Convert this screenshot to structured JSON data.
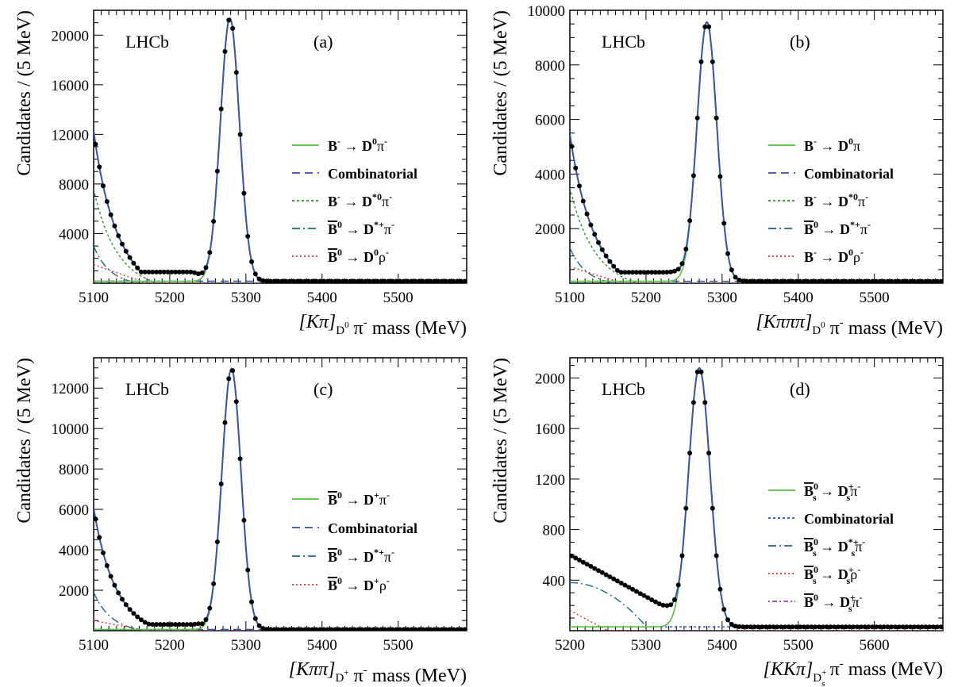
{
  "chart_data": [
    {
      "panel_label": "(a)",
      "experiment": "LHCb",
      "type": "scatter",
      "xlim": [
        5100,
        5590
      ],
      "ylim": [
        0,
        22000
      ],
      "x_ticks": [
        5100,
        5200,
        5300,
        5400,
        5500
      ],
      "y_ticks": [
        4000,
        8000,
        12000,
        16000,
        20000
      ],
      "xlabel": {
        "main": "[Kπ]",
        "sub": "D",
        "subsup": "0",
        "post": " π",
        "postsup": "-",
        "unit": " mass (MeV)"
      },
      "ylabel": "Candidates / (5 MeV)",
      "legend": [
        {
          "pre": "B",
          "presup": "-",
          "presub": "",
          "bar": false,
          "arrow": "→",
          "d": "D",
          "dsup": "0",
          "dsub": "",
          "post": "π",
          "postsup": "-",
          "color": "#55c040",
          "dash": ""
        },
        {
          "label": "Combinatorial",
          "color": "#3050b0",
          "dash": "10,6"
        },
        {
          "pre": "B",
          "presup": "-",
          "presub": "",
          "bar": false,
          "arrow": "→",
          "d": "D",
          "dsup": "*0",
          "dsub": "",
          "post": "π",
          "postsup": "-",
          "color": "#2e8b3a",
          "dash": "3,3"
        },
        {
          "pre": "B",
          "presup": "0",
          "presub": "",
          "bar": true,
          "arrow": "→",
          "d": "D",
          "dsup": "*+",
          "dsub": "",
          "post": "π",
          "postsup": "-",
          "color": "#1a6a80",
          "dash": "10,4,2,4"
        },
        {
          "pre": "B",
          "presup": "0",
          "presub": "",
          "bar": true,
          "arrow": "→",
          "d": "D",
          "dsup": "0",
          "dsub": "",
          "post": "ρ",
          "postsup": "-",
          "color": "#e03030",
          "dash": "2,3"
        }
      ],
      "peak": {
        "mu": 5279,
        "sigma": 12.5,
        "amp": 21200
      },
      "components": [
        {
          "color": "#2e8b3a",
          "dash": "3,3",
          "type": "exp",
          "a": 7600,
          "tau": 28,
          "cut": 5185
        },
        {
          "color": "#1a6a80",
          "dash": "10,4,2,4",
          "type": "exp",
          "a": 3000,
          "tau": 20,
          "cut": 5160
        },
        {
          "color": "#e03030",
          "dash": "2,3",
          "type": "line",
          "a": 1500,
          "end": 5170
        },
        {
          "color": "#3050b0",
          "dash": "10,6",
          "type": "flat",
          "a": 160
        }
      ],
      "plateau": {
        "lo": 5130,
        "hi": 5230,
        "level": 900
      }
    },
    {
      "panel_label": "(b)",
      "experiment": "LHCb",
      "type": "scatter",
      "xlim": [
        5100,
        5590
      ],
      "ylim": [
        0,
        10000
      ],
      "x_ticks": [
        5100,
        5200,
        5300,
        5400,
        5500
      ],
      "y_ticks": [
        2000,
        4000,
        6000,
        8000,
        10000
      ],
      "xlabel": {
        "main": "[Kπππ]",
        "sub": "D",
        "subsup": "0",
        "post": " π",
        "postsup": "-",
        "unit": " mass (MeV)"
      },
      "ylabel": "Candidates / (5 MeV)",
      "legend": [
        {
          "pre": "B",
          "presup": "-",
          "presub": "",
          "bar": false,
          "arrow": "→",
          "d": "D",
          "dsup": "0",
          "dsub": "",
          "post": "π",
          "postsup": "",
          "color": "#55c040",
          "dash": ""
        },
        {
          "label": "Combinatorial",
          "color": "#3050b0",
          "dash": "10,6"
        },
        {
          "pre": "B",
          "presup": "-",
          "presub": "",
          "bar": false,
          "arrow": "→",
          "d": "D",
          "dsup": "*0",
          "dsub": "",
          "post": "π",
          "postsup": "-",
          "color": "#2e8b3a",
          "dash": "3,3"
        },
        {
          "pre": "B",
          "presup": "0",
          "presub": "",
          "bar": true,
          "arrow": "→",
          "d": "D",
          "dsup": "*+",
          "dsub": "",
          "post": "π",
          "postsup": "-",
          "color": "#1a6a80",
          "dash": "10,4,2,4"
        },
        {
          "pre": "B",
          "presup": "-",
          "presub": "",
          "bar": false,
          "arrow": "→",
          "d": "D",
          "dsup": "0",
          "dsub": "",
          "post": "ρ",
          "postsup": "-",
          "color": "#e03030",
          "dash": "2,3"
        }
      ],
      "peak": {
        "mu": 5280,
        "sigma": 13,
        "amp": 9500
      },
      "components": [
        {
          "color": "#2e8b3a",
          "dash": "3,3",
          "type": "exp",
          "a": 3500,
          "tau": 30,
          "cut": 5190
        },
        {
          "color": "#1a6a80",
          "dash": "10,4,2,4",
          "type": "exp",
          "a": 1300,
          "tau": 20,
          "cut": 5160
        },
        {
          "color": "#e03030",
          "dash": "2,3",
          "type": "line",
          "a": 600,
          "end": 5170
        },
        {
          "color": "#3050b0",
          "dash": "10,6",
          "type": "flat",
          "a": 70
        }
      ],
      "plateau": {
        "lo": 5140,
        "hi": 5240,
        "level": 400
      }
    },
    {
      "panel_label": "(c)",
      "experiment": "LHCb",
      "type": "scatter",
      "xlim": [
        5100,
        5590
      ],
      "ylim": [
        0,
        13500
      ],
      "x_ticks": [
        5100,
        5200,
        5300,
        5400,
        5500
      ],
      "y_ticks": [
        2000,
        4000,
        6000,
        8000,
        10000,
        12000
      ],
      "xlabel": {
        "main": "[Kππ]",
        "sub": "D",
        "subsup": "+",
        "post": " π",
        "postsup": "-",
        "unit": " mass (MeV)"
      },
      "ylabel": "Candidates / (5 MeV)",
      "legend": [
        {
          "pre": "B",
          "presup": "0",
          "presub": "",
          "bar": true,
          "arrow": "→",
          "d": "D",
          "dsup": "+",
          "dsub": "",
          "post": "π",
          "postsup": "-",
          "color": "#55c040",
          "dash": ""
        },
        {
          "label": "Combinatorial",
          "color": "#3050b0",
          "dash": "10,6"
        },
        {
          "pre": "B",
          "presup": "0",
          "presub": "",
          "bar": true,
          "arrow": "→",
          "d": "D",
          "dsup": "*+",
          "dsub": "",
          "post": "π",
          "postsup": "-",
          "color": "#1a6a80",
          "dash": "10,4,2,4"
        },
        {
          "pre": "B",
          "presup": "0",
          "presub": "",
          "bar": true,
          "arrow": "→",
          "d": "D",
          "dsup": "+",
          "dsub": "",
          "post": "ρ",
          "postsup": "-",
          "color": "#e03030",
          "dash": "2,3"
        }
      ],
      "peak": {
        "mu": 5281,
        "sigma": 12.5,
        "amp": 12900
      },
      "components": [
        {
          "color": "#1a6a80",
          "dash": "10,4,2,4",
          "type": "exp",
          "a": 1900,
          "tau": 22,
          "cut": 5170
        },
        {
          "color": "#e03030",
          "dash": "2,3",
          "type": "line",
          "a": 500,
          "end": 5170
        },
        {
          "color": "#3050b0",
          "dash": "10,6",
          "type": "flat",
          "a": 60
        }
      ],
      "plateau": {
        "lo": 5150,
        "hi": 5240,
        "level": 250,
        "start": 3600,
        "tau": 28
      }
    },
    {
      "panel_label": "(d)",
      "experiment": "LHCb",
      "type": "scatter",
      "xlim": [
        5200,
        5690
      ],
      "ylim": [
        0,
        2160
      ],
      "x_ticks": [
        5200,
        5300,
        5400,
        5500,
        5600
      ],
      "y_ticks": [
        400,
        800,
        1200,
        1600,
        2000
      ],
      "xlabel": {
        "main": "[KKπ]",
        "sub": "D",
        "subsup": "+",
        "subsub": "s",
        "post": " π",
        "postsup": "-",
        "unit": " mass (MeV)"
      },
      "ylabel": "Candidates / (5 MeV)",
      "legend": [
        {
          "pre": "B",
          "presup": "0",
          "presub": "s",
          "bar": true,
          "arrow": "→",
          "d": "D",
          "dsup": "+",
          "dsub": "s",
          "post": "π",
          "postsup": "-",
          "color": "#55c040",
          "dash": ""
        },
        {
          "label": "Combinatorial",
          "color": "#3050b0",
          "dash": "3,3"
        },
        {
          "pre": "B",
          "presup": "0",
          "presub": "s",
          "bar": true,
          "arrow": "→",
          "d": "D",
          "dsup": "*+",
          "dsub": "s",
          "post": "π",
          "postsup": "-",
          "color": "#1a6a80",
          "dash": "10,4,2,4"
        },
        {
          "pre": "B",
          "presup": "0",
          "presub": "s",
          "bar": true,
          "arrow": "→",
          "d": "D",
          "dsup": "+",
          "dsub": "s",
          "post": "ρ",
          "postsup": "-",
          "color": "#e03030",
          "dash": "2,3"
        },
        {
          "pre": "B",
          "presup": "0",
          "presub": "",
          "bar": true,
          "arrow": "→",
          "d": "D",
          "dsup": "+",
          "dsub": "s",
          "post": "π",
          "postsup": "-",
          "color": "#a040b0",
          "dash": "2,3,6,3"
        }
      ],
      "peak": {
        "mu": 5370,
        "sigma": 14,
        "amp": 2050
      },
      "components": [
        {
          "color": "#1a6a80",
          "dash": "10,4,2,4",
          "type": "hump",
          "a": 380,
          "cut": 5305
        },
        {
          "color": "#e03030",
          "dash": "2,3",
          "type": "line",
          "a": 160,
          "end": 5250
        },
        {
          "color": "#3050b0",
          "dash": "3,3",
          "type": "flat",
          "a": 30
        }
      ],
      "plateau": {
        "lo": 5200,
        "hi": 5330,
        "level": 170,
        "start": 600,
        "mode": "linear"
      }
    }
  ]
}
